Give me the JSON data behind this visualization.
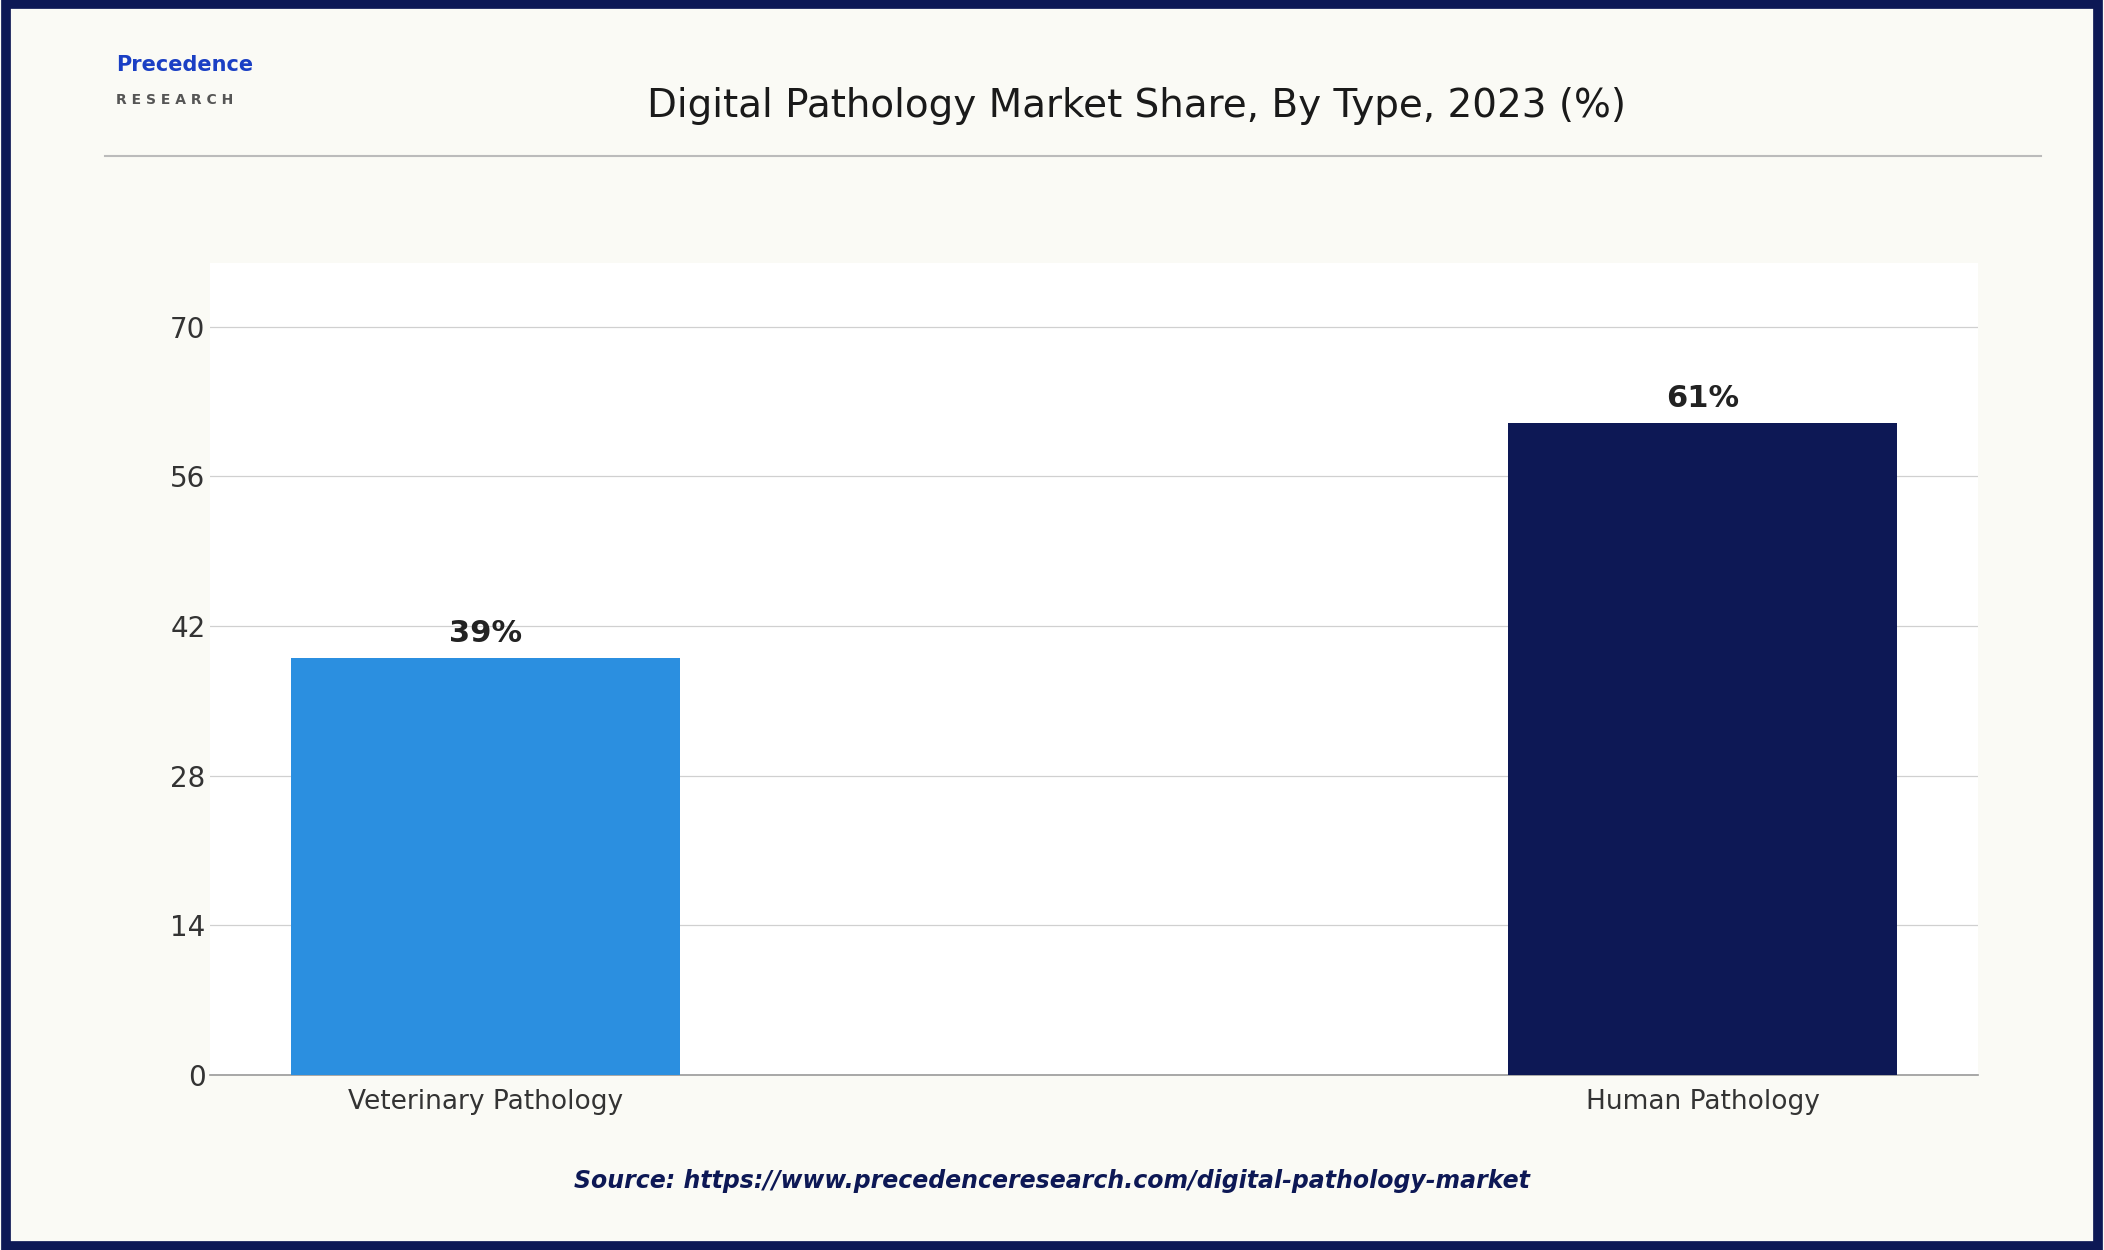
{
  "title": "Digital Pathology Market Share, By Type, 2023 (%)",
  "categories": [
    "Veterinary Pathology",
    "Human Pathology"
  ],
  "values": [
    39,
    61
  ],
  "bar_colors": [
    "#2B8FE0",
    "#0D1855"
  ],
  "label_texts": [
    "39%",
    "61%"
  ],
  "yticks": [
    0,
    14,
    28,
    42,
    56,
    70
  ],
  "ylim": [
    0,
    76
  ],
  "source_text": "Source: https://www.precedenceresearch.com/digital-pathology-market",
  "background_color": "#FAFAF5",
  "plot_bg_color": "#FFFFFF",
  "title_color": "#1a1a1a",
  "axis_tick_color": "#333333",
  "grid_color": "#d0d0d0",
  "source_color": "#0D1855",
  "border_color": "#0D1855",
  "title_fontsize": 28,
  "tick_fontsize": 20,
  "bar_label_fontsize": 22,
  "xlabel_fontsize": 19,
  "source_fontsize": 17,
  "bar_width": 0.32
}
